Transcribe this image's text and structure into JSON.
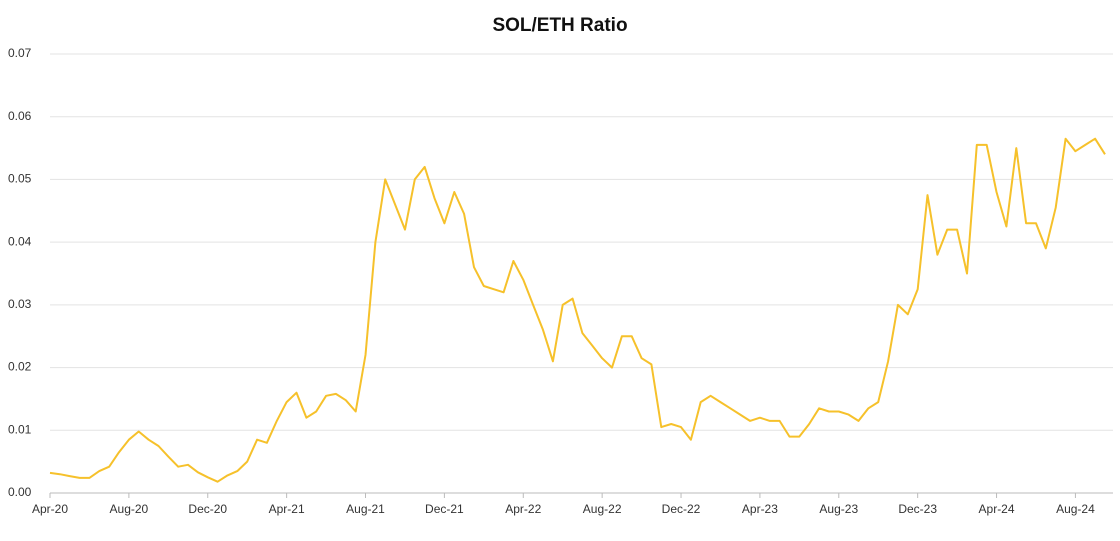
{
  "chart_data": {
    "type": "line",
    "title": "SOL/ETH Ratio",
    "categories": [
      "Apr-20",
      null,
      null,
      null,
      null,
      null,
      null,
      null,
      "Aug-20",
      null,
      null,
      null,
      null,
      null,
      null,
      null,
      "Dec-20",
      null,
      null,
      null,
      null,
      null,
      null,
      null,
      "Apr-21",
      null,
      null,
      null,
      null,
      null,
      null,
      null,
      "Aug-21",
      null,
      null,
      null,
      null,
      null,
      null,
      null,
      "Dec-21",
      null,
      null,
      null,
      null,
      null,
      null,
      null,
      "Apr-22",
      null,
      null,
      null,
      null,
      null,
      null,
      null,
      "Aug-22",
      null,
      null,
      null,
      null,
      null,
      null,
      null,
      "Dec-22",
      null,
      null,
      null,
      null,
      null,
      null,
      null,
      "Apr-23",
      null,
      null,
      null,
      null,
      null,
      null,
      null,
      "Aug-23",
      null,
      null,
      null,
      null,
      null,
      null,
      null,
      "Dec-23",
      null,
      null,
      null,
      null,
      null,
      null,
      null,
      "Apr-24",
      null,
      null,
      null,
      null,
      null,
      null,
      null,
      "Aug-24",
      null,
      null,
      null
    ],
    "values": [
      0.0032,
      0.003,
      0.0027,
      0.0024,
      0.0024,
      0.0035,
      0.0042,
      0.0065,
      0.0085,
      0.0098,
      0.0085,
      0.0075,
      0.0058,
      0.0042,
      0.0045,
      0.0033,
      0.0025,
      0.0018,
      0.0028,
      0.0035,
      0.005,
      0.0085,
      0.008,
      0.0115,
      0.0145,
      0.016,
      0.012,
      0.013,
      0.0155,
      0.0158,
      0.0148,
      0.013,
      0.022,
      0.04,
      0.05,
      0.046,
      0.042,
      0.05,
      0.052,
      0.047,
      0.043,
      0.048,
      0.0445,
      0.036,
      0.033,
      0.0325,
      0.032,
      0.037,
      0.034,
      0.03,
      0.026,
      0.021,
      0.03,
      0.031,
      0.0255,
      0.0235,
      0.0215,
      0.02,
      0.025,
      0.025,
      0.0215,
      0.0205,
      0.0105,
      0.011,
      0.0105,
      0.0085,
      0.0145,
      0.0155,
      0.0145,
      0.0135,
      0.0125,
      0.0115,
      0.012,
      0.0115,
      0.0115,
      0.009,
      0.009,
      0.011,
      0.0135,
      0.013,
      0.013,
      0.0125,
      0.0115,
      0.0135,
      0.0145,
      0.021,
      0.03,
      0.0285,
      0.0325,
      0.0475,
      0.038,
      0.042,
      0.042,
      0.035,
      0.0555,
      0.0555,
      0.048,
      0.0425,
      0.055,
      0.043,
      0.043,
      0.039,
      0.0455,
      0.0565,
      0.0545,
      0.0555,
      0.0565,
      0.054
    ],
    "color": "#f6c12b",
    "ylim": [
      0,
      0.07
    ],
    "yticks": [
      {
        "value": 0,
        "label": "0.00"
      },
      {
        "value": 0.01,
        "label": "0.01"
      },
      {
        "value": 0.02,
        "label": "0.02"
      },
      {
        "value": 0.03,
        "label": "0.03"
      },
      {
        "value": 0.04,
        "label": "0.04"
      },
      {
        "value": 0.05,
        "label": "0.05"
      },
      {
        "value": 0.06,
        "label": "0.06"
      },
      {
        "value": 0.07,
        "label": "0.07"
      }
    ],
    "grid": true
  }
}
